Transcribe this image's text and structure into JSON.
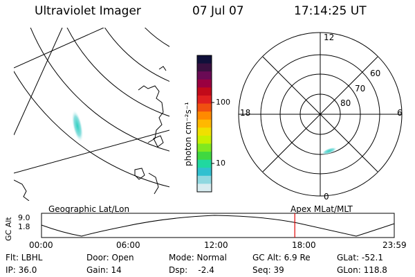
{
  "header": {
    "instrument": "Ultraviolet Imager",
    "date": "07 Jul 07",
    "time": "17:14:25 UT"
  },
  "colorbar": {
    "unit_label": "photon cm⁻²s⁻¹",
    "tick_labels": [
      "100",
      "10"
    ],
    "colors": [
      "#10103a",
      "#3a1040",
      "#6a0a55",
      "#9a0040",
      "#c20a1a",
      "#e02020",
      "#f05010",
      "#ff8a00",
      "#ffb800",
      "#f0e000",
      "#c8f000",
      "#80e820",
      "#40d840",
      "#20d8a0",
      "#30c0d0",
      "#90d8e0",
      "#d8ecf0"
    ]
  },
  "geo_panel": {
    "label": "Geographic Lat/Lon"
  },
  "polar_panel": {
    "label": "Apex MLat/MLT",
    "mlt_labels": {
      "top": "12",
      "left": "18",
      "right": "6",
      "bottom": "0"
    },
    "lat_labels": [
      "60",
      "70",
      "80"
    ]
  },
  "altitude_plot": {
    "ylabel": "GC Alt",
    "yticks": [
      "9.0",
      "1.8"
    ],
    "xticks": [
      "00:00",
      "06:00",
      "12:00",
      "18:00",
      "23:59"
    ],
    "marker_time": "17:14",
    "marker_color": "#e00000"
  },
  "status": {
    "flt": "Flt: LBHL",
    "ip": "IP: 36.0",
    "door": "Door: Open",
    "gain": "Gain: 14",
    "mode": "Mode: Normal",
    "dsp": "Dsp:    -2.4",
    "gcalt": "GC Alt: 6.9 Re",
    "seq": "Seq: 39",
    "glat": "GLat: -52.1",
    "glon": "GLon: 118.8"
  }
}
